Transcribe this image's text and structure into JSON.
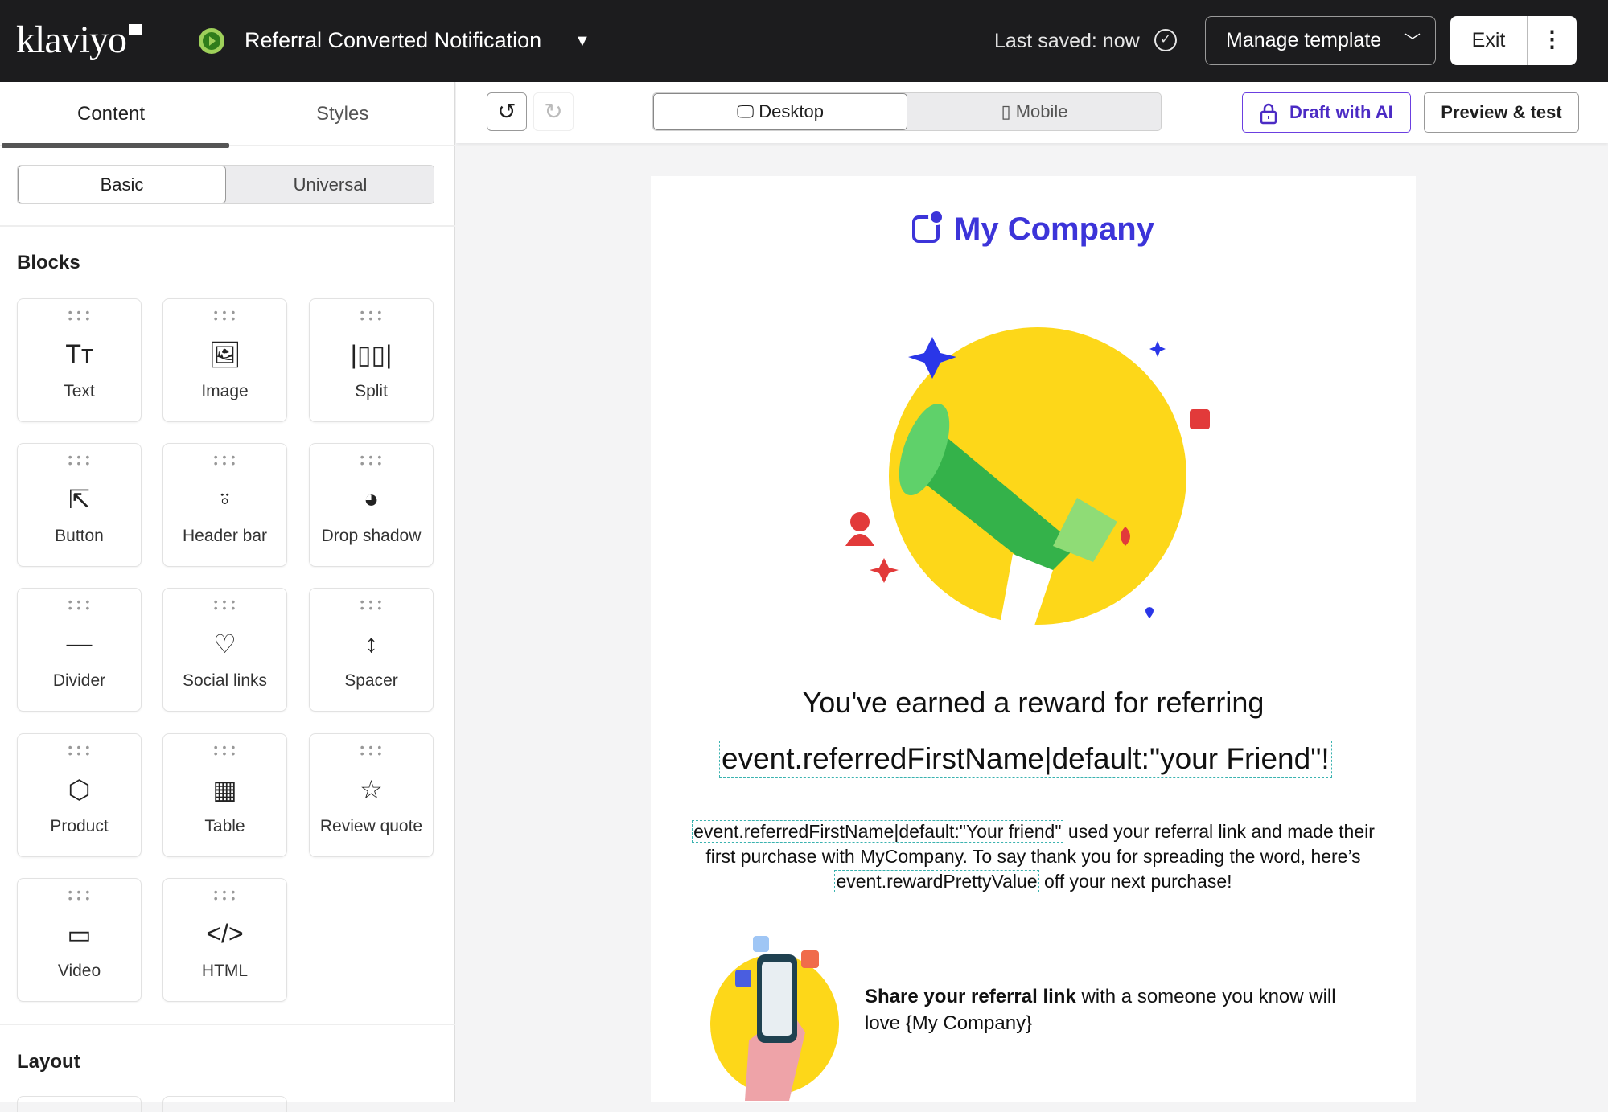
{
  "header": {
    "logo": "klaviyo",
    "template_title": "Referral Converted Notification",
    "last_saved": "Last saved: now",
    "manage_template": "Manage template",
    "exit": "Exit"
  },
  "sidebar": {
    "tabs": [
      "Content",
      "Styles"
    ],
    "active_tab": "Content",
    "segments": [
      "Basic",
      "Universal"
    ],
    "active_segment": "Basic",
    "blocks_heading": "Blocks",
    "blocks": [
      {
        "label": "Text",
        "icon": "text-icon"
      },
      {
        "label": "Image",
        "icon": "image-icon"
      },
      {
        "label": "Split",
        "icon": "split-icon"
      },
      {
        "label": "Button",
        "icon": "cursor-click-icon"
      },
      {
        "label": "Header bar",
        "icon": "header-bar-icon"
      },
      {
        "label": "Drop shadow",
        "icon": "drop-shadow-icon"
      },
      {
        "label": "Divider",
        "icon": "divider-icon"
      },
      {
        "label": "Social links",
        "icon": "heart-icon"
      },
      {
        "label": "Spacer",
        "icon": "vertical-arrows-icon"
      },
      {
        "label": "Product",
        "icon": "cube-icon"
      },
      {
        "label": "Table",
        "icon": "table-icon"
      },
      {
        "label": "Review quote",
        "icon": "star-quote-icon"
      },
      {
        "label": "Video",
        "icon": "video-icon"
      },
      {
        "label": "HTML",
        "icon": "code-icon"
      }
    ],
    "layout_heading": "Layout"
  },
  "toolbar": {
    "device_options": [
      "Desktop",
      "Mobile"
    ],
    "active_device": "Desktop",
    "draft_ai": "Draft with AI",
    "preview": "Preview & test"
  },
  "email": {
    "brand": "My Company",
    "brand_color": "#3c34d9",
    "headline": "You've earned a reward for referring",
    "headline_tag": "event.referredFirstName|default:\"your Friend\"!",
    "para_tag1": "event.referredFirstName|default:\"Your friend\"",
    "para_text1": " used your referral link and made their first purchase with MyCompany. To say thank you for spreading the word, here’s ",
    "para_tag2": "event.rewardPrettyValue",
    "para_text2": " off your next purchase!",
    "share_bold": "Share your referral link",
    "share_rest": " with a someone you know will love {My Company}"
  }
}
